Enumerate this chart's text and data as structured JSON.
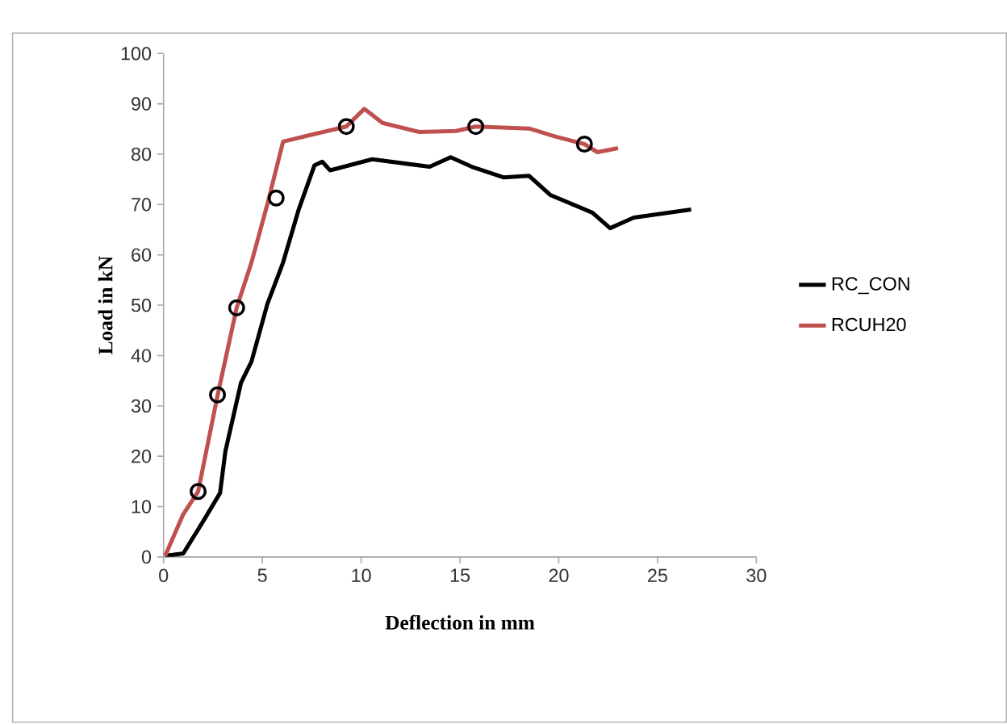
{
  "chart_data": {
    "type": "line",
    "xlabel": "Deflection in mm",
    "ylabel": "Load in kN",
    "xlim": [
      0,
      30
    ],
    "ylim": [
      0,
      100
    ],
    "xticks": [
      0,
      5,
      10,
      15,
      20,
      25,
      30
    ],
    "yticks": [
      0,
      10,
      20,
      30,
      40,
      50,
      60,
      70,
      80,
      90,
      100
    ],
    "grid": false,
    "legend": "right",
    "line_style": "solid",
    "series": [
      {
        "name": "RC_CON",
        "color": "#000000",
        "x": [
          0.08,
          1.0,
          2.07,
          2.86,
          3.13,
          3.92,
          4.45,
          5.25,
          6.05,
          6.84,
          7.64,
          8.03,
          8.43,
          10.56,
          13.47,
          14.53,
          15.6,
          17.2,
          18.5,
          19.57,
          21.7,
          22.6,
          23.8,
          26.7
        ],
        "values": [
          0.2,
          0.7,
          7.5,
          12.7,
          21,
          34.6,
          38.8,
          50.2,
          58.5,
          69,
          77.8,
          78.5,
          76.8,
          79,
          77.5,
          79.4,
          77.5,
          75.4,
          75.7,
          71.9,
          68.4,
          65.3,
          67.4,
          69
        ]
      },
      {
        "name": "RCUH20",
        "color": "#c0504d",
        "x": [
          0.08,
          1.0,
          1.75,
          2.73,
          3.7,
          4.45,
          5.25,
          6.05,
          7.64,
          9.25,
          10.16,
          11.08,
          12.94,
          14.8,
          15.8,
          18.5,
          19.83,
          21.3,
          21.96,
          23.0
        ],
        "values": [
          0.2,
          8.5,
          13,
          32,
          49.5,
          58.5,
          70,
          82.5,
          84,
          85.5,
          89,
          86.2,
          84.4,
          84.6,
          85.5,
          85.1,
          83.5,
          82,
          80.4,
          81.2
        ]
      },
      {
        "type": "scatter",
        "marker": "circle",
        "color": "#000000",
        "x": [
          1.75,
          2.73,
          3.7,
          5.7,
          9.25,
          15.8,
          21.3
        ],
        "values": [
          13,
          32.2,
          49.5,
          71.3,
          85.5,
          85.5,
          82
        ]
      }
    ]
  }
}
